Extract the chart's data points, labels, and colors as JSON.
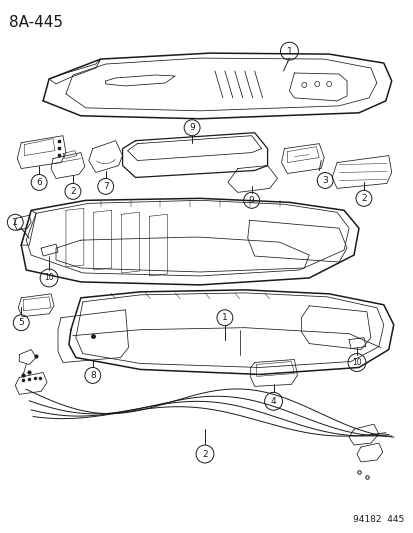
{
  "title": "8A-445",
  "footer": "94182  445",
  "bg_color": "#ffffff",
  "line_color": "#1a1a1a",
  "title_fontsize": 11,
  "footer_fontsize": 6.5,
  "fig_width": 4.14,
  "fig_height": 5.33,
  "dpi": 100
}
